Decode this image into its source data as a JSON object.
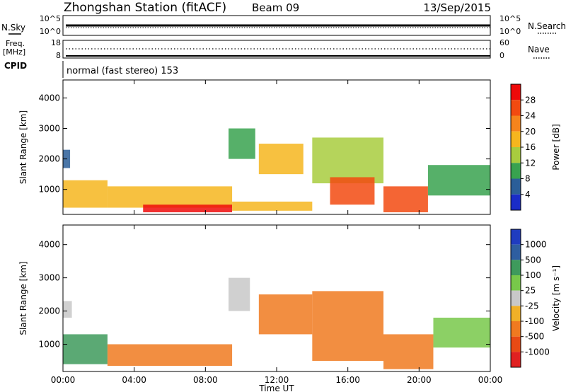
{
  "header": {
    "station": "Zhongshan Station (fitACF)",
    "beam": "Beam 09",
    "date": "13/Sep/2015"
  },
  "panels_top": {
    "nsky_label": "N.Sky",
    "nsky_ticks": [
      "10^5",
      "10^0"
    ],
    "nsearch_ticks": [
      "10^5",
      "10^0"
    ],
    "nsearch_label": "N.Search",
    "freq_label_1": "Freq.",
    "freq_label_2": "[MHz]",
    "freq_ticks": [
      "18",
      "8"
    ],
    "nave_ticks": [
      "60",
      "0"
    ],
    "nave_label": "Nave",
    "cpid_label": "CPID",
    "cpid_text": "normal (fast stereo) 153"
  },
  "chart_data": [
    {
      "type": "heatmap",
      "title": "",
      "ylabel": "Slant Range [km]",
      "yticks": [
        "4000",
        "3000",
        "2000",
        "1000"
      ],
      "ylim": [
        180,
        4590
      ],
      "xlim": [
        0,
        24
      ],
      "colorbar_label": "Power [dB]",
      "colorbar_ticks": [
        "28",
        "24",
        "20",
        "16",
        "12",
        "8",
        "4"
      ],
      "colorbar_colors": [
        "#ee0a0a",
        "#f24a10",
        "#f6841c",
        "#f6b61e",
        "#a8cc3e",
        "#38a24f",
        "#2b5e98",
        "#1a2cc8"
      ],
      "regions": [
        {
          "t0": 0.0,
          "t1": 0.4,
          "r0": 1700,
          "r1": 2300,
          "level": 6
        },
        {
          "t0": 0.0,
          "t1": 2.5,
          "r0": 400,
          "r1": 1300,
          "level": 3
        },
        {
          "t0": 2.5,
          "t1": 9.5,
          "r0": 400,
          "r1": 1100,
          "level": 3
        },
        {
          "t0": 4.5,
          "t1": 9.5,
          "r0": 250,
          "r1": 500,
          "level": 0
        },
        {
          "t0": 9.5,
          "t1": 14.0,
          "r0": 300,
          "r1": 600,
          "level": 3
        },
        {
          "t0": 9.3,
          "t1": 10.8,
          "r0": 2000,
          "r1": 3000,
          "level": 5
        },
        {
          "t0": 11.0,
          "t1": 13.5,
          "r0": 1500,
          "r1": 2500,
          "level": 3
        },
        {
          "t0": 14.0,
          "t1": 18.0,
          "r0": 1200,
          "r1": 2700,
          "level": 4
        },
        {
          "t0": 15.0,
          "t1": 17.5,
          "r0": 500,
          "r1": 1400,
          "level": 1
        },
        {
          "t0": 18.0,
          "t1": 20.5,
          "r0": 250,
          "r1": 1100,
          "level": 1
        },
        {
          "t0": 20.5,
          "t1": 24.0,
          "r0": 800,
          "r1": 1800,
          "level": 5
        }
      ]
    },
    {
      "type": "heatmap",
      "title": "",
      "ylabel": "Slant Range [km]",
      "yticks": [
        "4000",
        "3000",
        "2000",
        "1000"
      ],
      "ylim": [
        180,
        4590
      ],
      "xlim": [
        0,
        24
      ],
      "xticks": [
        "00:00",
        "04:00",
        "08:00",
        "12:00",
        "16:00",
        "20:00",
        "00:00"
      ],
      "xlabel": "Time UT",
      "colorbar_label": "Velocity [m s⁻¹]",
      "colorbar_ticks": [
        "1000",
        "500",
        "100",
        "25",
        "-25",
        "-100",
        "-500",
        "-1000"
      ],
      "colorbar_colors": [
        "#1f3cc0",
        "#2e5ea0",
        "#3e9a5c",
        "#78c84a",
        "#c8c8c8",
        "#f0b028",
        "#f07a20",
        "#e84a14",
        "#e02020"
      ],
      "regions": [
        {
          "t0": 0.0,
          "t1": 0.5,
          "r0": 1800,
          "r1": 2300,
          "level": 4
        },
        {
          "t0": 0.0,
          "t1": 2.5,
          "r0": 400,
          "r1": 1300,
          "level": 2
        },
        {
          "t0": 2.5,
          "t1": 9.5,
          "r0": 350,
          "r1": 1000,
          "level": 6
        },
        {
          "t0": 9.3,
          "t1": 10.5,
          "r0": 2000,
          "r1": 3000,
          "level": 4
        },
        {
          "t0": 11.0,
          "t1": 14.0,
          "r0": 1300,
          "r1": 2500,
          "level": 6
        },
        {
          "t0": 14.0,
          "t1": 18.0,
          "r0": 500,
          "r1": 2600,
          "level": 6
        },
        {
          "t0": 18.0,
          "t1": 20.8,
          "r0": 250,
          "r1": 1300,
          "level": 6
        },
        {
          "t0": 20.8,
          "t1": 24.0,
          "r0": 900,
          "r1": 1800,
          "level": 3
        }
      ]
    }
  ]
}
